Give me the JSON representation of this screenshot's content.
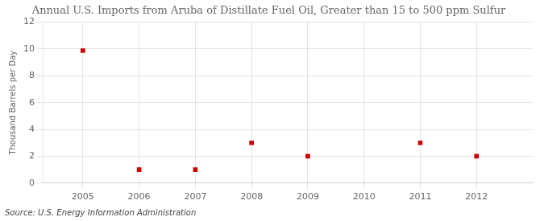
{
  "chart_data": {
    "type": "scatter",
    "title": "Annual U.S. Imports from Aruba of Distillate Fuel Oil, Greater than 15 to 500 ppm Sulfur",
    "y_label": "Thousand Barrels per Day",
    "annotations": [
      "Source: U.S. Energy Information Administration"
    ],
    "x": [
      2005,
      2006,
      2007,
      2008,
      2009,
      2011,
      2012
    ],
    "values": [
      9.876,
      1.0,
      1.0,
      3.0,
      2.0,
      3.0,
      2.0
    ],
    "color": "#cc0000",
    "marker": "square",
    "xlim": [
      2004.3,
      2013.0
    ],
    "xticks": [
      2005,
      2006,
      2007,
      2008,
      2009,
      2010,
      2011,
      2012
    ],
    "ylim": [
      0,
      12
    ],
    "yticks": [
      0,
      2,
      4,
      6,
      8,
      10,
      12
    ],
    "grid": true
  }
}
